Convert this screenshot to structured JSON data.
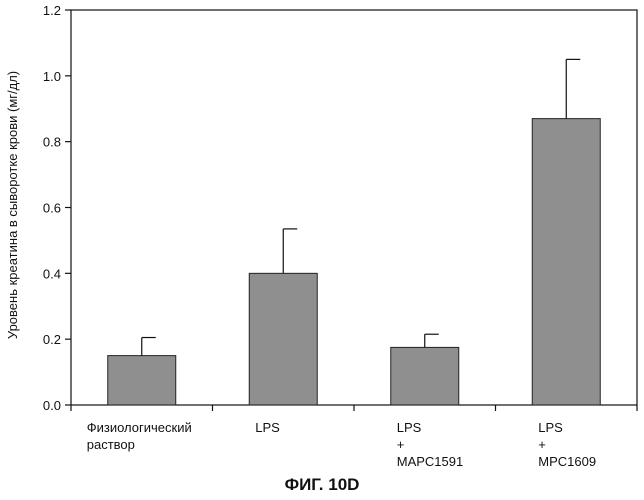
{
  "figure_label": "ФИГ. 10D",
  "chart_data": {
    "type": "bar",
    "ylabel": "Уровень креатина в сыворотке крови (мг/дл)",
    "ylim": [
      0,
      1.2
    ],
    "yticks": [
      "0.0",
      "0.2",
      "0.4",
      "0.6",
      "0.8",
      "1.0",
      "1.2"
    ],
    "grid": false,
    "categories": [
      {
        "lines": [
          "Физиологический",
          "раствор"
        ]
      },
      {
        "lines": [
          "LPS"
        ]
      },
      {
        "lines": [
          "LPS",
          "+",
          "MAPC1591"
        ]
      },
      {
        "lines": [
          "LPS",
          "+",
          "MPC1609"
        ]
      }
    ],
    "values": [
      0.15,
      0.4,
      0.175,
      0.87
    ],
    "error_upper": [
      0.205,
      0.535,
      0.215,
      1.05
    ],
    "colors": {
      "bar_fill": "#8f8f8f",
      "bar_stroke": "#222222",
      "axis": "#111111"
    }
  }
}
